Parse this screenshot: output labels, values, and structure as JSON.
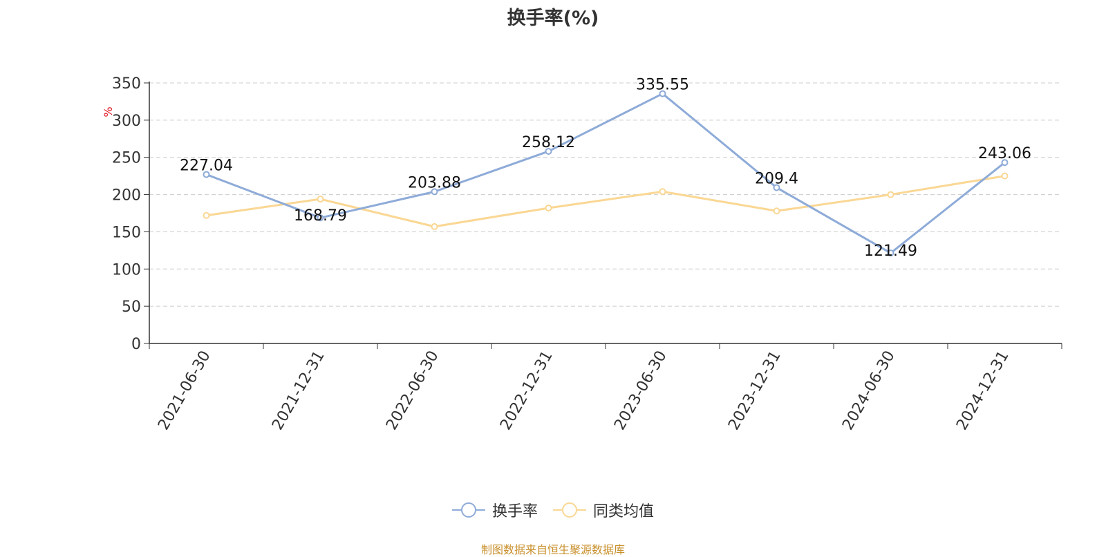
{
  "chart_data": {
    "type": "line",
    "title": "换手率(%)",
    "ylabel": "%",
    "xlabel": "",
    "ylim": [
      0,
      350
    ],
    "yticks": [
      0,
      50,
      100,
      150,
      200,
      250,
      300,
      350
    ],
    "grid": true,
    "legend_position": "bottom",
    "categories": [
      "2021-06-30",
      "2021-12-31",
      "2022-06-30",
      "2022-12-31",
      "2023-06-30",
      "2023-12-31",
      "2024-06-30",
      "2024-12-31"
    ],
    "series": [
      {
        "name": "换手率",
        "color": "#8eabd8",
        "values": [
          227.04,
          168.79,
          203.88,
          258.12,
          335.55,
          209.4,
          121.49,
          243.06
        ],
        "show_labels": true
      },
      {
        "name": "同类均值",
        "color": "#fad794",
        "values": [
          172,
          194,
          157,
          182,
          204,
          178,
          200,
          225
        ],
        "show_labels": false
      }
    ]
  },
  "source": "制图数据来自恒生聚源数据库",
  "colors": {
    "axis": "#333333",
    "grid": "#cccccc",
    "ylabel": "#e0141e",
    "text": "#333333",
    "source": "#c9902c"
  }
}
